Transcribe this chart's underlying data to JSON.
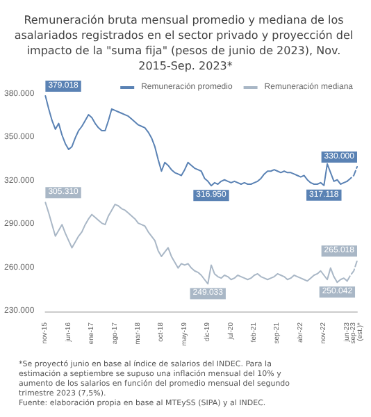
{
  "chart_data": {
    "type": "line",
    "title": "Remuneración bruta mensual promedio y mediana de los asalariados registrados en el sector privado y proyección del impacto de la \"suma fija\" (pesos de junio de 2023), Nov. 2015-Sep. 2023*",
    "categories": [
      "nov-15",
      null,
      null,
      null,
      null,
      null,
      null,
      "jun-16",
      null,
      null,
      null,
      null,
      null,
      null,
      "ene-17",
      null,
      null,
      null,
      null,
      null,
      null,
      "ago-17",
      null,
      null,
      null,
      null,
      null,
      null,
      "mar-18",
      null,
      null,
      null,
      null,
      null,
      null,
      "oct-18",
      null,
      null,
      null,
      null,
      null,
      null,
      "may-19",
      null,
      null,
      null,
      null,
      null,
      null,
      "dic-19",
      null,
      null,
      null,
      null,
      null,
      null,
      "jul-20",
      null,
      null,
      null,
      null,
      null,
      null,
      "feb-21",
      null,
      null,
      null,
      null,
      null,
      null,
      "sep-21",
      null,
      null,
      null,
      null,
      null,
      null,
      "abr-22",
      null,
      null,
      null,
      null,
      null,
      null,
      "nov-22",
      null,
      null,
      null,
      null,
      null,
      null,
      "jun-23",
      null,
      null,
      "sep-23 (est.)*"
    ],
    "series": [
      {
        "name": "Remuneración promedio",
        "color": "#5a82b4",
        "values": [
          379018,
          370000,
          362000,
          356000,
          360000,
          352000,
          346000,
          342000,
          344000,
          350000,
          355000,
          358000,
          362000,
          366000,
          364000,
          360000,
          357000,
          355000,
          355000,
          362000,
          370000,
          369000,
          368000,
          367000,
          366000,
          365000,
          363000,
          361000,
          359000,
          358000,
          357000,
          354000,
          350000,
          344000,
          335000,
          327000,
          333000,
          331000,
          328000,
          326000,
          325000,
          324000,
          328000,
          333000,
          331000,
          329000,
          328000,
          327000,
          322000,
          320000,
          316950,
          319000,
          318000,
          320000,
          321000,
          320000,
          319000,
          320000,
          319000,
          318000,
          319000,
          318000,
          318000,
          319000,
          320000,
          322000,
          325000,
          327000,
          327000,
          328000,
          327000,
          326000,
          327000,
          326000,
          326000,
          325000,
          324000,
          323000,
          324000,
          321000,
          319000,
          318000,
          318000,
          319000,
          317118,
          332000,
          326000,
          320000,
          321000,
          318000,
          319000,
          320000,
          null,
          null,
          null
        ],
        "value_labels": [
          "379.018",
          null,
          null,
          null,
          null,
          null,
          null,
          null,
          null,
          null,
          null,
          null,
          null,
          null,
          null,
          null,
          null,
          null,
          null,
          null,
          null,
          null,
          null,
          null,
          null,
          null,
          null,
          null,
          null,
          null,
          null,
          null,
          null,
          null,
          null,
          null,
          null,
          null,
          null,
          null,
          null,
          null,
          null,
          null,
          null,
          null,
          null,
          null,
          null,
          null,
          "316.950",
          null,
          null,
          null,
          null,
          null,
          null,
          null,
          null,
          null,
          null,
          null,
          null,
          null,
          null,
          null,
          null,
          null,
          null,
          null,
          null,
          null,
          null,
          null,
          null,
          null,
          null,
          null,
          null,
          null,
          null,
          null,
          null,
          null,
          "317.118",
          null,
          null,
          null,
          null,
          null,
          null,
          null,
          null,
          null,
          null
        ]
      },
      {
        "name": "Remuneración mediana",
        "color": "#a9b7c6",
        "values": [
          305310,
          298000,
          290000,
          282000,
          286000,
          290000,
          284000,
          279000,
          274000,
          278000,
          282000,
          285000,
          290000,
          294000,
          297000,
          295000,
          293000,
          291000,
          290000,
          296000,
          300000,
          304000,
          303000,
          301000,
          300000,
          298000,
          296000,
          294000,
          291000,
          290000,
          289000,
          285000,
          282000,
          279000,
          272000,
          268000,
          271000,
          274000,
          268000,
          264000,
          260000,
          263000,
          262000,
          263000,
          260000,
          258000,
          257000,
          255000,
          252000,
          249033,
          262000,
          256000,
          254000,
          253000,
          255000,
          254000,
          252000,
          253000,
          255000,
          254000,
          253000,
          252000,
          253000,
          255000,
          256000,
          254000,
          253000,
          252000,
          253000,
          254000,
          256000,
          255000,
          254000,
          252000,
          253000,
          255000,
          254000,
          253000,
          252000,
          251000,
          253000,
          255000,
          256000,
          258000,
          255000,
          252000,
          260000,
          254000,
          250042,
          252000,
          253000,
          251000,
          null,
          null,
          null
        ],
        "value_labels": [
          "305.310",
          null,
          null,
          null,
          null,
          null,
          null,
          null,
          null,
          null,
          null,
          null,
          null,
          null,
          null,
          null,
          null,
          null,
          null,
          null,
          null,
          null,
          null,
          null,
          null,
          null,
          null,
          null,
          null,
          null,
          null,
          null,
          null,
          null,
          null,
          null,
          null,
          null,
          null,
          null,
          null,
          null,
          null,
          null,
          null,
          null,
          null,
          null,
          null,
          "249.033",
          null,
          null,
          null,
          null,
          null,
          null,
          null,
          null,
          null,
          null,
          null,
          null,
          null,
          null,
          null,
          null,
          null,
          null,
          null,
          null,
          null,
          null,
          null,
          null,
          null,
          null,
          null,
          null,
          null,
          null,
          null,
          null,
          null,
          null,
          null,
          null,
          null,
          null,
          "250.042",
          null,
          null,
          null,
          null,
          null,
          null
        ]
      },
      {
        "color": "#5a82b4",
        "line_style": "dashed",
        "values": [
          null,
          null,
          null,
          null,
          null,
          null,
          null,
          null,
          null,
          null,
          null,
          null,
          null,
          null,
          null,
          null,
          null,
          null,
          null,
          null,
          null,
          null,
          null,
          null,
          null,
          null,
          null,
          null,
          null,
          null,
          null,
          null,
          null,
          null,
          null,
          null,
          null,
          null,
          null,
          null,
          null,
          null,
          null,
          null,
          null,
          null,
          null,
          null,
          null,
          null,
          null,
          null,
          null,
          null,
          null,
          null,
          null,
          null,
          null,
          null,
          null,
          null,
          null,
          null,
          null,
          null,
          null,
          null,
          null,
          null,
          null,
          null,
          null,
          null,
          null,
          null,
          null,
          null,
          null,
          null,
          null,
          null,
          null,
          null,
          null,
          null,
          null,
          null,
          null,
          null,
          null,
          320000,
          322000,
          324000,
          330000
        ],
        "value_labels": [
          null,
          null,
          null,
          null,
          null,
          null,
          null,
          null,
          null,
          null,
          null,
          null,
          null,
          null,
          null,
          null,
          null,
          null,
          null,
          null,
          null,
          null,
          null,
          null,
          null,
          null,
          null,
          null,
          null,
          null,
          null,
          null,
          null,
          null,
          null,
          null,
          null,
          null,
          null,
          null,
          null,
          null,
          null,
          null,
          null,
          null,
          null,
          null,
          null,
          null,
          null,
          null,
          null,
          null,
          null,
          null,
          null,
          null,
          null,
          null,
          null,
          null,
          null,
          null,
          null,
          null,
          null,
          null,
          null,
          null,
          null,
          null,
          null,
          null,
          null,
          null,
          null,
          null,
          null,
          null,
          null,
          null,
          null,
          null,
          null,
          null,
          null,
          null,
          null,
          null,
          null,
          null,
          null,
          null,
          "330.000"
        ]
      },
      {
        "color": "#a9b7c6",
        "line_style": "dashed",
        "values": [
          null,
          null,
          null,
          null,
          null,
          null,
          null,
          null,
          null,
          null,
          null,
          null,
          null,
          null,
          null,
          null,
          null,
          null,
          null,
          null,
          null,
          null,
          null,
          null,
          null,
          null,
          null,
          null,
          null,
          null,
          null,
          null,
          null,
          null,
          null,
          null,
          null,
          null,
          null,
          null,
          null,
          null,
          null,
          null,
          null,
          null,
          null,
          null,
          null,
          null,
          null,
          null,
          null,
          null,
          null,
          null,
          null,
          null,
          null,
          null,
          null,
          null,
          null,
          null,
          null,
          null,
          null,
          null,
          null,
          null,
          null,
          null,
          null,
          null,
          null,
          null,
          null,
          null,
          null,
          null,
          null,
          null,
          null,
          null,
          null,
          null,
          null,
          null,
          null,
          null,
          null,
          251000,
          255000,
          258000,
          265018
        ],
        "value_labels": [
          null,
          null,
          null,
          null,
          null,
          null,
          null,
          null,
          null,
          null,
          null,
          null,
          null,
          null,
          null,
          null,
          null,
          null,
          null,
          null,
          null,
          null,
          null,
          null,
          null,
          null,
          null,
          null,
          null,
          null,
          null,
          null,
          null,
          null,
          null,
          null,
          null,
          null,
          null,
          null,
          null,
          null,
          null,
          null,
          null,
          null,
          null,
          null,
          null,
          null,
          null,
          null,
          null,
          null,
          null,
          null,
          null,
          null,
          null,
          null,
          null,
          null,
          null,
          null,
          null,
          null,
          null,
          null,
          null,
          null,
          null,
          null,
          null,
          null,
          null,
          null,
          null,
          null,
          null,
          null,
          null,
          null,
          null,
          null,
          null,
          null,
          null,
          null,
          null,
          null,
          null,
          null,
          null,
          null,
          "265.018"
        ]
      }
    ],
    "ylim": [
      230000,
      380000
    ],
    "yticks": [
      {
        "value": 230000,
        "label": "230.000"
      },
      {
        "value": 260000,
        "label": "260.000"
      },
      {
        "value": 290000,
        "label": "290.000"
      },
      {
        "value": 320000,
        "label": "320.000"
      },
      {
        "value": 350000,
        "label": "350.000"
      },
      {
        "value": 380000,
        "label": "380.000"
      }
    ],
    "grid": false,
    "legend": "top",
    "marker": "none",
    "line_style": "solid",
    "annotations": [
      "*Se proyectó junio en base al índice de salarios del INDEC. Para la estimación a septiembre se supuso una inflación mensual del 10% y aumento de los salarios en función del promedio mensual del segundo trimestre 2023 (7,5%).",
      "Fuente: elaboración propia en base al MTEySS (SIPA) y al INDEC."
    ]
  }
}
